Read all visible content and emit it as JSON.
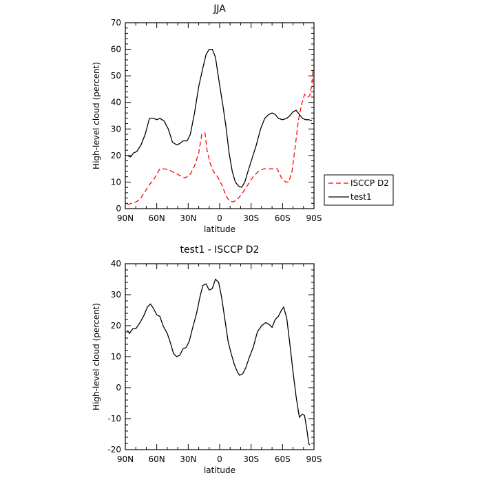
{
  "chart_data": [
    {
      "type": "line",
      "title": "JJA",
      "xlabel": "latitude",
      "ylabel": "High-level cloud (percent)",
      "xlim": [
        90,
        -90
      ],
      "ylim": [
        0,
        70
      ],
      "x_ticks": [
        90,
        60,
        30,
        0,
        -30,
        -60,
        -90
      ],
      "x_tick_labels": [
        "90N",
        "60N",
        "30N",
        "0",
        "30S",
        "60S",
        "90S"
      ],
      "y_ticks": [
        0,
        10,
        20,
        30,
        40,
        50,
        60,
        70
      ],
      "y_tick_labels": [
        "0",
        "10",
        "20",
        "30",
        "40",
        "50",
        "60",
        "70"
      ],
      "legend_position": "right, outside the plot",
      "series": [
        {
          "name": "ISCCP D2",
          "color": "#ff0000",
          "dash": "dashed",
          "points": [
            [
              88,
              1.5
            ],
            [
              84,
              2
            ],
            [
              80,
              2.5
            ],
            [
              76,
              3.5
            ],
            [
              72,
              6
            ],
            [
              67,
              9
            ],
            [
              62,
              11.5
            ],
            [
              57,
              15
            ],
            [
              53,
              15
            ],
            [
              48,
              14.5
            ],
            [
              43,
              13.5
            ],
            [
              38,
              12.5
            ],
            [
              33,
              11.5
            ],
            [
              28,
              13
            ],
            [
              24,
              16
            ],
            [
              20,
              21
            ],
            [
              17,
              28
            ],
            [
              14,
              28.5
            ],
            [
              12,
              22
            ],
            [
              9,
              17
            ],
            [
              6,
              14
            ],
            [
              2,
              12
            ],
            [
              -2,
              9
            ],
            [
              -6,
              5
            ],
            [
              -9,
              3
            ],
            [
              -13,
              2.5
            ],
            [
              -17,
              3.5
            ],
            [
              -22,
              6
            ],
            [
              -27,
              9
            ],
            [
              -32,
              12
            ],
            [
              -37,
              14
            ],
            [
              -42,
              15
            ],
            [
              -46,
              15
            ],
            [
              -51,
              15
            ],
            [
              -55,
              15
            ],
            [
              -59,
              11.5
            ],
            [
              -63,
              10
            ],
            [
              -66,
              10
            ],
            [
              -69,
              14
            ],
            [
              -72,
              23
            ],
            [
              -75,
              33
            ],
            [
              -78,
              39
            ],
            [
              -81,
              43
            ],
            [
              -84,
              42
            ],
            [
              -86,
              42.5
            ],
            [
              -88,
              47
            ],
            [
              -89,
              52
            ]
          ]
        },
        {
          "name": "test1",
          "color": "#000000",
          "dash": "solid",
          "points": [
            [
              88,
              20
            ],
            [
              85,
              19.5
            ],
            [
              82,
              21
            ],
            [
              79,
              21.5
            ],
            [
              75,
              24
            ],
            [
              71,
              28
            ],
            [
              67,
              34
            ],
            [
              63,
              34
            ],
            [
              60,
              33.5
            ],
            [
              57,
              34
            ],
            [
              53,
              33
            ],
            [
              49,
              30
            ],
            [
              45,
              25
            ],
            [
              41,
              24
            ],
            [
              38,
              24.5
            ],
            [
              35,
              25.5
            ],
            [
              31,
              25.5
            ],
            [
              28,
              28
            ],
            [
              24,
              36
            ],
            [
              20,
              46
            ],
            [
              16,
              53
            ],
            [
              13,
              58
            ],
            [
              10,
              60
            ],
            [
              7,
              60
            ],
            [
              4,
              57
            ],
            [
              1,
              49
            ],
            [
              -3,
              39
            ],
            [
              -6,
              31
            ],
            [
              -9,
              21
            ],
            [
              -12,
              14
            ],
            [
              -15,
              10
            ],
            [
              -18,
              8.5
            ],
            [
              -21,
              8
            ],
            [
              -24,
              10
            ],
            [
              -27,
              14
            ],
            [
              -31,
              19
            ],
            [
              -35,
              24
            ],
            [
              -39,
              30
            ],
            [
              -43,
              34
            ],
            [
              -47,
              35.5
            ],
            [
              -50,
              36
            ],
            [
              -53,
              35.5
            ],
            [
              -56,
              34
            ],
            [
              -60,
              33.5
            ],
            [
              -64,
              34
            ],
            [
              -67,
              35
            ],
            [
              -70,
              36.5
            ],
            [
              -73,
              37
            ],
            [
              -76,
              35.5
            ],
            [
              -79,
              34
            ],
            [
              -82,
              33.5
            ],
            [
              -85,
              33.5
            ],
            [
              -88,
              33
            ]
          ]
        }
      ]
    },
    {
      "type": "line",
      "title": "test1 - ISCCP D2",
      "xlabel": "latitude",
      "ylabel": "High-level cloud (percent)",
      "xlim": [
        90,
        -90
      ],
      "ylim": [
        -20,
        40
      ],
      "x_ticks": [
        90,
        60,
        30,
        0,
        -30,
        -60,
        -90
      ],
      "x_tick_labels": [
        "90N",
        "60N",
        "30N",
        "0",
        "30S",
        "60S",
        "90S"
      ],
      "y_ticks": [
        -20,
        -10,
        0,
        10,
        20,
        30,
        40
      ],
      "y_tick_labels": [
        "-20",
        "-10",
        "0",
        "10",
        "20",
        "30",
        "40"
      ],
      "series": [
        {
          "color": "#000000",
          "dash": "solid",
          "points": [
            [
              88,
              18.5
            ],
            [
              86,
              17.5
            ],
            [
              83,
              19
            ],
            [
              80,
              19
            ],
            [
              76,
              21
            ],
            [
              72,
              23.5
            ],
            [
              69,
              26
            ],
            [
              66,
              27
            ],
            [
              63,
              25.5
            ],
            [
              60,
              23.5
            ],
            [
              57,
              23
            ],
            [
              54,
              20
            ],
            [
              50,
              17.5
            ],
            [
              47,
              14.5
            ],
            [
              44,
              11
            ],
            [
              41,
              10
            ],
            [
              38,
              10.5
            ],
            [
              35,
              12.5
            ],
            [
              32,
              13
            ],
            [
              29,
              15
            ],
            [
              26,
              19
            ],
            [
              22,
              24
            ],
            [
              19,
              29
            ],
            [
              16,
              33
            ],
            [
              13,
              33.5
            ],
            [
              10,
              31.5
            ],
            [
              7,
              32
            ],
            [
              4,
              35
            ],
            [
              1,
              34
            ],
            [
              -2,
              29
            ],
            [
              -5,
              22
            ],
            [
              -8,
              15
            ],
            [
              -11,
              11
            ],
            [
              -14,
              7.5
            ],
            [
              -17,
              5
            ],
            [
              -19,
              4
            ],
            [
              -22,
              4.5
            ],
            [
              -25,
              6.5
            ],
            [
              -28,
              9.5
            ],
            [
              -32,
              13
            ],
            [
              -36,
              18
            ],
            [
              -40,
              20
            ],
            [
              -44,
              21
            ],
            [
              -47,
              20.5
            ],
            [
              -50,
              19.5
            ],
            [
              -53,
              22
            ],
            [
              -56,
              23
            ],
            [
              -59,
              25
            ],
            [
              -61,
              26
            ],
            [
              -64,
              22.5
            ],
            [
              -67,
              14
            ],
            [
              -70,
              5
            ],
            [
              -73,
              -3
            ],
            [
              -76,
              -9.5
            ],
            [
              -79,
              -8.5
            ],
            [
              -81,
              -9
            ],
            [
              -83,
              -13
            ],
            [
              -85,
              -18
            ],
            [
              -86,
              -18.5
            ]
          ]
        }
      ]
    }
  ]
}
